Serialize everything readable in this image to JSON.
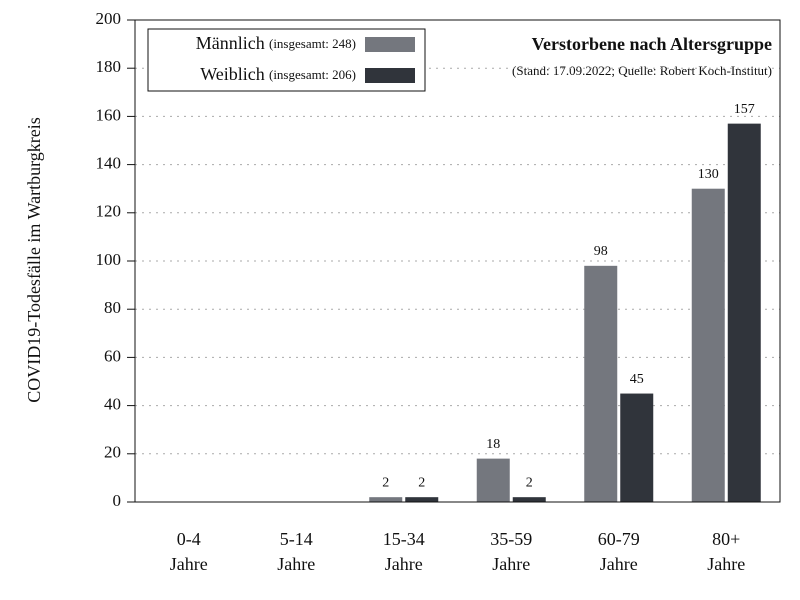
{
  "chart_data": {
    "type": "bar",
    "title": "Verstorbene nach Altersgruppe",
    "subtitle": "(Stand: 17.09.2022; Quelle: Robert Koch-Institut)",
    "y_label": "COVID19-Todesfälle im Wartburgkreis",
    "categories": [
      [
        "0-4",
        "Jahre"
      ],
      [
        "5-14",
        "Jahre"
      ],
      [
        "15-34",
        "Jahre"
      ],
      [
        "35-59",
        "Jahre"
      ],
      [
        "60-79",
        "Jahre"
      ],
      [
        "80+",
        "Jahre"
      ]
    ],
    "series": [
      {
        "name": "Männlich",
        "total_label": "(insgesamt: 248)",
        "color": "#74777e",
        "values": [
          0,
          0,
          2,
          18,
          98,
          130
        ],
        "value_labels": [
          null,
          null,
          "2",
          "18",
          "98",
          "130"
        ]
      },
      {
        "name": "Weiblich",
        "total_label": "(insgesamt: 206)",
        "color": "#30343b",
        "values": [
          0,
          0,
          2,
          2,
          45,
          157
        ],
        "value_labels": [
          null,
          null,
          "2",
          "2",
          "45",
          "157"
        ]
      }
    ],
    "ylim": [
      0,
      200
    ],
    "yticks": [
      0,
      20,
      40,
      60,
      80,
      100,
      120,
      140,
      160,
      180,
      200
    ],
    "grid": true
  }
}
